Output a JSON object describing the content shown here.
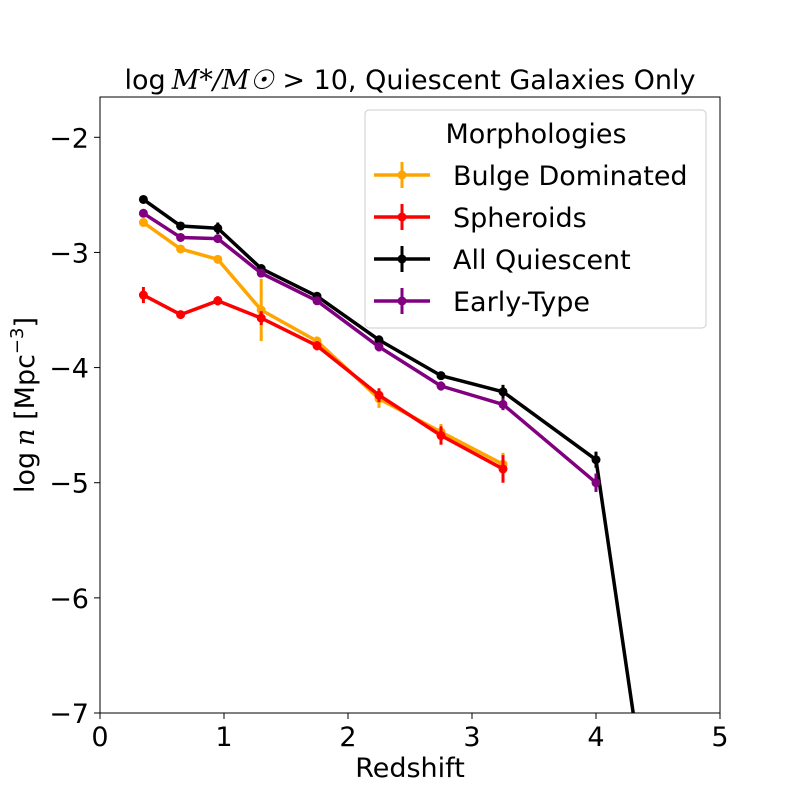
{
  "chart_data": {
    "type": "line",
    "title": "log M*/M☉ > 10, Quiescent Galaxies Only",
    "title_parts": {
      "log": "log",
      "math": "M*/M☉",
      "rest": " > 10, Quiescent Galaxies Only"
    },
    "xlabel": "Redshift",
    "ylabel": "log n [Mpc⁻³]",
    "ylabel_parts": {
      "log": "log",
      "var": "n",
      "unit": " [Mpc",
      "exp": "−3",
      "close": "]"
    },
    "xlim": [
      0,
      5
    ],
    "ylim": [
      -7,
      -1.65
    ],
    "xticks": [
      0,
      1,
      2,
      3,
      4,
      5
    ],
    "xtick_labels": [
      "0",
      "1",
      "2",
      "3",
      "4",
      "5"
    ],
    "yticks": [
      -7,
      -6,
      -5,
      -4,
      -3,
      -2
    ],
    "ytick_labels": [
      "−7",
      "−6",
      "−5",
      "−4",
      "−3",
      "−2"
    ],
    "grid": false,
    "legend": {
      "title": "Morphologies",
      "position": "upper right"
    },
    "series": [
      {
        "name": "Bulge Dominated",
        "color": "#FFA500",
        "x": [
          0.35,
          0.65,
          0.95,
          1.3,
          1.75,
          2.25,
          2.75,
          3.25
        ],
        "y": [
          -2.74,
          -2.97,
          -3.06,
          -3.5,
          -3.77,
          -4.27,
          -4.56,
          -4.84
        ],
        "yerr": [
          0.03,
          0.03,
          0.03,
          0.27,
          0.04,
          0.08,
          0.07,
          0.1
        ]
      },
      {
        "name": "Spheroids",
        "color": "#FF0000",
        "x": [
          0.35,
          0.65,
          0.95,
          1.3,
          1.75,
          2.25,
          2.75,
          3.25
        ],
        "y": [
          -3.37,
          -3.54,
          -3.42,
          -3.57,
          -3.81,
          -4.24,
          -4.59,
          -4.88
        ],
        "yerr": [
          0.07,
          0.03,
          0.04,
          0.06,
          0.04,
          0.06,
          0.08,
          0.12
        ]
      },
      {
        "name": "All Quiescent",
        "color": "#000000",
        "x": [
          0.35,
          0.65,
          0.95,
          1.3,
          1.75,
          2.25,
          2.75,
          3.25,
          4.0,
          4.3
        ],
        "y": [
          -2.54,
          -2.77,
          -2.79,
          -3.14,
          -3.38,
          -3.76,
          -4.07,
          -4.21,
          -4.8,
          -7.0
        ],
        "yerr": [
          0.02,
          0.02,
          0.05,
          0.03,
          0.03,
          0.04,
          0.03,
          0.06,
          0.07,
          0
        ],
        "markers": [
          true,
          true,
          true,
          true,
          true,
          true,
          true,
          true,
          true,
          false
        ]
      },
      {
        "name": "Early-Type",
        "color": "#800080",
        "x": [
          0.35,
          0.65,
          0.95,
          1.3,
          1.75,
          2.25,
          2.75,
          3.25,
          4.0
        ],
        "y": [
          -2.66,
          -2.87,
          -2.88,
          -3.18,
          -3.42,
          -3.82,
          -4.16,
          -4.32,
          -5.0
        ],
        "yerr": [
          0.02,
          0.02,
          0.03,
          0.03,
          0.03,
          0.04,
          0.04,
          0.05,
          0.08
        ]
      }
    ]
  }
}
